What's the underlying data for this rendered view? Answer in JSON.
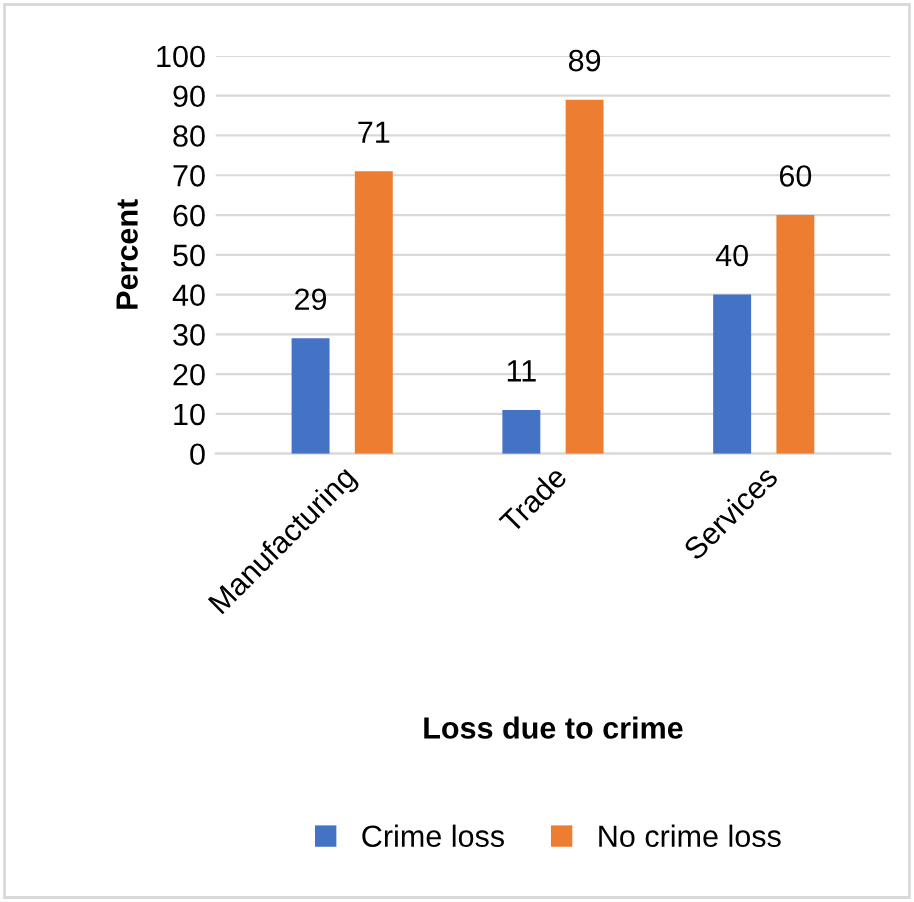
{
  "chart_data": {
    "type": "bar",
    "xlabel": "Loss due to crime",
    "ylabel": "Percent",
    "categories": [
      "Manufacturing",
      "Trade",
      "Services"
    ],
    "series": [
      {
        "name": "Crime loss",
        "color": "#4472c4",
        "values": [
          29,
          11,
          40
        ]
      },
      {
        "name": "No crime loss",
        "color": "#ed7d31",
        "values": [
          71,
          89,
          60
        ]
      }
    ],
    "ylim": [
      0,
      100
    ],
    "yticks": [
      0,
      10,
      20,
      30,
      40,
      50,
      60,
      70,
      80,
      90,
      100
    ],
    "grid": "y",
    "legend": "bottom",
    "data_labels": true
  }
}
